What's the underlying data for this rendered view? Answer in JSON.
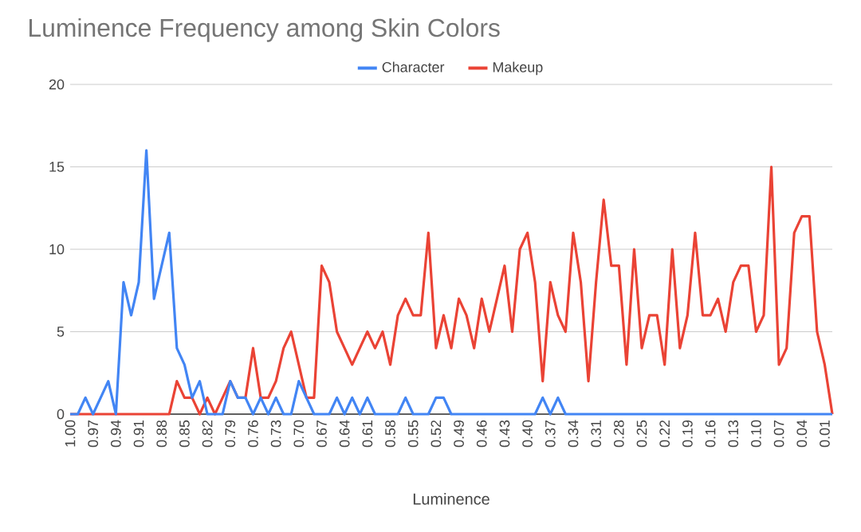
{
  "chart_data": {
    "type": "line",
    "title": "Luminence Frequency among Skin Colors",
    "xlabel": "Luminence",
    "categories": [
      "1.00",
      null,
      null,
      "0.97",
      null,
      null,
      "0.94",
      null,
      null,
      "0.91",
      null,
      null,
      "0.88",
      null,
      null,
      "0.85",
      null,
      null,
      "0.82",
      null,
      null,
      "0.79",
      null,
      null,
      "0.76",
      null,
      null,
      "0.73",
      null,
      null,
      "0.70",
      null,
      null,
      "0.67",
      null,
      null,
      "0.64",
      null,
      null,
      "0.61",
      null,
      null,
      "0.58",
      null,
      null,
      "0.55",
      null,
      null,
      "0.52",
      null,
      null,
      "0.49",
      null,
      null,
      "0.46",
      null,
      null,
      "0.43",
      null,
      null,
      "0.40",
      null,
      null,
      "0.37",
      null,
      null,
      "0.34",
      null,
      null,
      "0.31",
      null,
      null,
      "0.28",
      null,
      null,
      "0.25",
      null,
      null,
      "0.22",
      null,
      null,
      "0.19",
      null,
      null,
      "0.16",
      null,
      null,
      "0.13",
      null,
      null,
      "0.10",
      null,
      null,
      "0.07",
      null,
      null,
      "0.04",
      null,
      null,
      "0.01",
      null
    ],
    "series": [
      {
        "name": "Character",
        "color": "#4285f4",
        "values": [
          0,
          0,
          1,
          0,
          1,
          2,
          0,
          8,
          6,
          8,
          16,
          7,
          9,
          11,
          4,
          3,
          1,
          2,
          0,
          0,
          0,
          2,
          1,
          1,
          0,
          1,
          0,
          1,
          0,
          0,
          2,
          1,
          0,
          0,
          0,
          1,
          0,
          1,
          0,
          1,
          0,
          0,
          0,
          0,
          1,
          0,
          0,
          0,
          1,
          1,
          0,
          0,
          0,
          0,
          0,
          0,
          0,
          0,
          0,
          0,
          0,
          0,
          1,
          0,
          1,
          0,
          0,
          0,
          0,
          0,
          0,
          0,
          0,
          0,
          0,
          0,
          0,
          0,
          0,
          0,
          0,
          0,
          0,
          0,
          0,
          0,
          0,
          0,
          0,
          0,
          0,
          0,
          0,
          0,
          0,
          0,
          0,
          0,
          0,
          0,
          0
        ]
      },
      {
        "name": "Makeup",
        "color": "#ea4335",
        "values": [
          0,
          0,
          0,
          0,
          0,
          0,
          0,
          0,
          0,
          0,
          0,
          0,
          0,
          0,
          2,
          1,
          1,
          0,
          1,
          0,
          1,
          2,
          1,
          1,
          4,
          1,
          1,
          2,
          4,
          5,
          3,
          1,
          1,
          9,
          8,
          5,
          4,
          3,
          4,
          5,
          4,
          5,
          3,
          6,
          7,
          6,
          6,
          11,
          4,
          6,
          4,
          7,
          6,
          4,
          7,
          5,
          7,
          9,
          5,
          10,
          11,
          8,
          2,
          8,
          6,
          5,
          11,
          8,
          2,
          8,
          13,
          9,
          9,
          3,
          10,
          4,
          6,
          6,
          3,
          10,
          4,
          6,
          11,
          6,
          6,
          7,
          5,
          8,
          9,
          9,
          5,
          6,
          15,
          3,
          4,
          11,
          12,
          12,
          5,
          3,
          0
        ]
      }
    ],
    "ylim": [
      0,
      20
    ],
    "yticks": [
      0,
      5,
      10,
      15,
      20
    ],
    "grid": "y",
    "legend": "top"
  }
}
